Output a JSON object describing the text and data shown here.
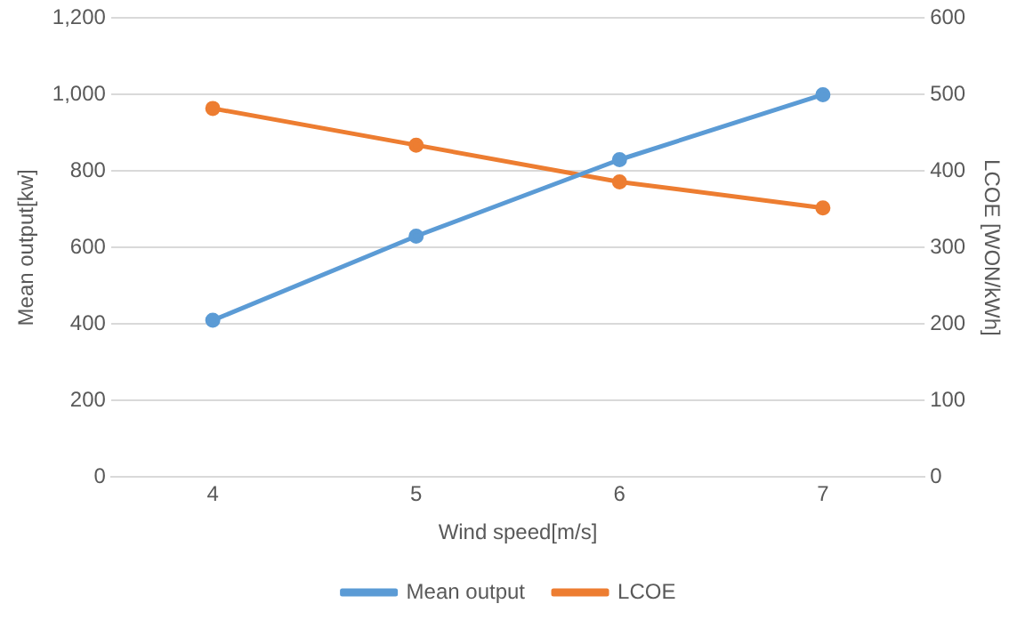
{
  "chart_data": {
    "type": "line",
    "xlabel": "Wind speed[m/s]",
    "ylabel": "Mean output[kw]",
    "y2label": "LCOE [WON/kWh]",
    "categories": [
      "4",
      "5",
      "6",
      "7"
    ],
    "series": [
      {
        "name": "Mean output",
        "color": "#5b9bd5",
        "values": [
          410,
          630,
          830,
          1000
        ]
      },
      {
        "name": "LCOE",
        "color": "#ed7d31",
        "values": [
          482,
          434,
          386,
          352
        ],
        "axis": "y2"
      }
    ],
    "ylim": [
      0,
      1200
    ],
    "yticks": [
      0,
      200,
      400,
      600,
      800,
      {
        "value": 1000,
        "label": "1,000"
      },
      {
        "value": 1200,
        "label": "1,200"
      }
    ],
    "y2lim": [
      0,
      600
    ],
    "y2ticks": [
      0,
      100,
      200,
      300,
      400,
      500,
      600
    ],
    "grid": "y",
    "legend": "bottom",
    "marker": "circle",
    "line_style": "solid"
  }
}
